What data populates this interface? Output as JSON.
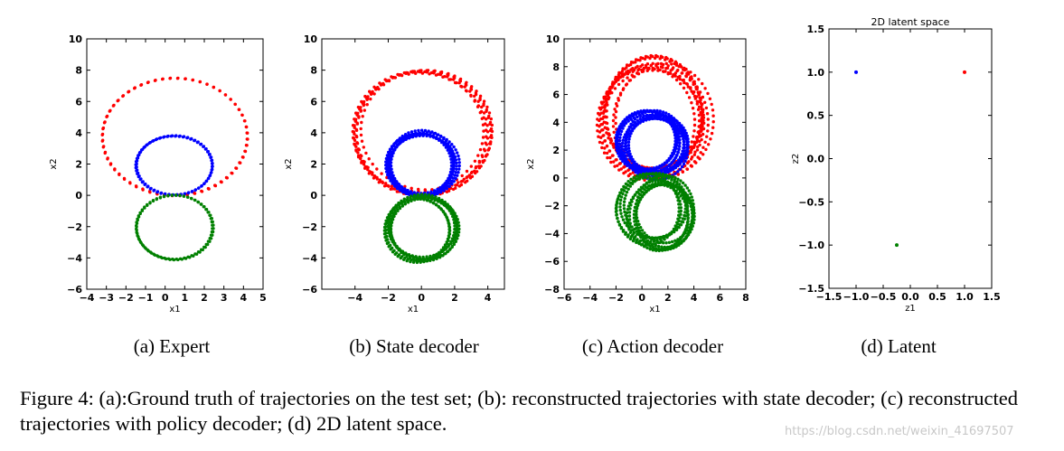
{
  "chart_data": [
    {
      "type": "scatter",
      "subcaption": "(a) Expert",
      "xlabel": "x1",
      "ylabel": "x2",
      "xlim": [
        -4,
        5
      ],
      "ylim": [
        -6,
        10
      ],
      "xticks": [
        -4,
        -3,
        -2,
        -1,
        0,
        1,
        2,
        3,
        4,
        5
      ],
      "yticks": [
        -6,
        -4,
        -2,
        0,
        2,
        4,
        6,
        8,
        10
      ],
      "series": [
        {
          "color": "#ff0000",
          "shape": "ellipse",
          "cx": 0.5,
          "cy": 3.75,
          "rx": 3.7,
          "ry": 3.75,
          "loops": 2,
          "jitter": 0.05
        },
        {
          "color": "#0000ff",
          "shape": "ellipse",
          "cx": 0.5,
          "cy": 1.9,
          "rx": 1.95,
          "ry": 1.9,
          "loops": 2,
          "jitter": 0.05
        },
        {
          "color": "#008000",
          "shape": "ellipse",
          "cx": 0.5,
          "cy": -2.05,
          "rx": 1.95,
          "ry": 2.05,
          "loops": 2,
          "jitter": 0.05
        }
      ]
    },
    {
      "type": "scatter",
      "subcaption": "(b) State decoder",
      "xlabel": "x1",
      "ylabel": "x2",
      "xlim": [
        -6,
        5
      ],
      "ylim": [
        -6,
        10
      ],
      "xticks": [
        -4,
        -2,
        0,
        2,
        4
      ],
      "yticks": [
        -6,
        -4,
        -2,
        0,
        2,
        4,
        6,
        8,
        10
      ],
      "series": [
        {
          "color": "#ff0000",
          "shape": "ellipse",
          "cx": 0.0,
          "cy": 4.0,
          "rx": 4.0,
          "ry": 3.9,
          "loops": 6,
          "jitter": 0.35
        },
        {
          "color": "#0000ff",
          "shape": "ellipse",
          "cx": 0.0,
          "cy": 2.0,
          "rx": 2.0,
          "ry": 1.95,
          "loops": 6,
          "jitter": 0.25
        },
        {
          "color": "#008000",
          "shape": "ellipse",
          "cx": 0.0,
          "cy": -2.1,
          "rx": 2.0,
          "ry": 2.0,
          "loops": 6,
          "jitter": 0.3
        }
      ]
    },
    {
      "type": "scatter",
      "subcaption": "(c) Action decoder",
      "xlabel": "x1",
      "ylabel": "x2",
      "xlim": [
        -6,
        8
      ],
      "ylim": [
        -8,
        10
      ],
      "xticks": [
        -6,
        -4,
        -2,
        0,
        2,
        4,
        6,
        8
      ],
      "yticks": [
        -8,
        -6,
        -4,
        -2,
        0,
        2,
        4,
        6,
        8,
        10
      ],
      "series": [
        {
          "color": "#ff0000",
          "shape": "ellipse",
          "cx": 1.0,
          "cy": 4.3,
          "rx": 3.8,
          "ry": 4.0,
          "loops": 10,
          "jitter": 0.8
        },
        {
          "color": "#0000ff",
          "shape": "ellipse",
          "cx": 0.9,
          "cy": 2.4,
          "rx": 2.3,
          "ry": 2.1,
          "loops": 10,
          "jitter": 0.6
        },
        {
          "color": "#008000",
          "shape": "ellipse",
          "cx": 1.1,
          "cy": -2.4,
          "rx": 2.4,
          "ry": 2.4,
          "loops": 10,
          "jitter": 0.7
        }
      ]
    },
    {
      "type": "scatter",
      "title": "2D latent space",
      "subcaption": "(d) Latent",
      "xlabel": "z1",
      "ylabel": "z2",
      "xlim": [
        -1.5,
        1.5
      ],
      "ylim": [
        -1.5,
        1.5
      ],
      "xticks": [
        -1.5,
        -1.0,
        -0.5,
        0.0,
        0.5,
        1.0,
        1.5
      ],
      "xtick_labels": [
        "−1.5",
        "−1.0",
        "−0.5",
        "0.0",
        "0.5",
        "1.0",
        "1.5"
      ],
      "yticks": [
        -1.5,
        -1.0,
        -0.5,
        0.0,
        0.5,
        1.0,
        1.5
      ],
      "ytick_labels": [
        "−1.5",
        "−1.0",
        "−0.5",
        "0.0",
        "0.5",
        "1.0",
        "1.5"
      ],
      "series": [
        {
          "color": "#0000ff",
          "shape": "points",
          "x": [
            -1.0
          ],
          "y": [
            1.0
          ]
        },
        {
          "color": "#ff0000",
          "shape": "points",
          "x": [
            1.0
          ],
          "y": [
            1.0
          ]
        },
        {
          "color": "#008000",
          "shape": "points",
          "x": [
            -0.25
          ],
          "y": [
            -1.0
          ]
        }
      ]
    }
  ],
  "caption": {
    "text": "Figure 4: (a):Ground truth of trajectories on the test set; (b): reconstructed trajectories with state decoder; (c) reconstructed trajectories with policy decoder; (d) 2D latent space."
  },
  "watermark": "https://blog.csdn.net/weixin_41697507"
}
